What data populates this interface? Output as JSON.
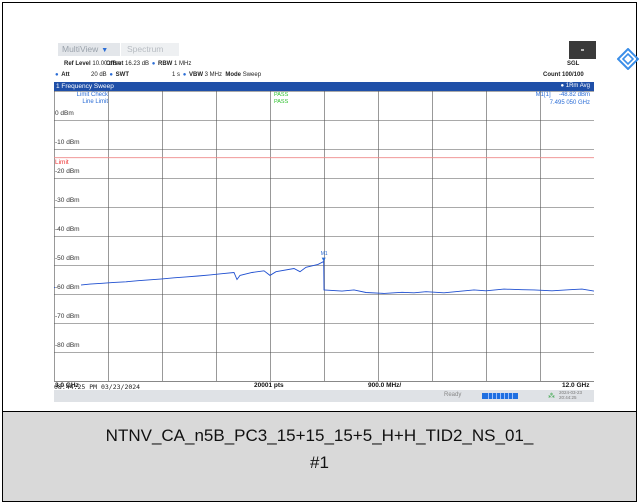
{
  "tabs": {
    "multiview": "MultiView",
    "spectrum": "Spectrum"
  },
  "header": {
    "ref_level_label": "Ref Level",
    "ref_level_value": "10.00 dBm",
    "offset_label": "Offset",
    "offset_value": "16.23 dB",
    "rbw_label": "RBW",
    "rbw_value": "1 MHz",
    "att_label": "Att",
    "att_value": "20 dB",
    "swt_label": "SWT",
    "swt_value": "1 s",
    "vbw_label": "VBW",
    "vbw_value": "3 MHz",
    "mode_label": "Mode",
    "mode_value": "Sweep",
    "sgl": "SGL",
    "count": "Count 100/100"
  },
  "window": {
    "title": "1 Frequency Sweep",
    "trace_label": "1Rm Avg",
    "limit_check": "Limit Check",
    "line_limit": "Line Limit",
    "pass1": "PASS",
    "pass2": "PASS",
    "marker_id": "M1[1]",
    "marker_level": "-48.82 dBm",
    "marker_freq": "7.495 050 GHz",
    "marker_tag": "M1",
    "limit_text": "Limit"
  },
  "footer": {
    "start": "3.0 GHz",
    "points": "20001 pts",
    "span_div": "900.0 MHz/",
    "stop": "12.0 GHz"
  },
  "status": {
    "ready": "Ready",
    "date": "2024-03-23",
    "time": "20:44:25"
  },
  "timestamp": "08:44:25 PM  03/23/2024",
  "caption": {
    "line1": "NTNV_CA_n5B_PC3_15+15_15+5_H+H_TID2_NS_01_",
    "line2": "#1"
  },
  "chart_data": {
    "type": "line",
    "y_ticks": [
      "0 dBm",
      "-10 dBm",
      "-20 dBm",
      "-30 dBm",
      "-40 dBm",
      "-50 dBm",
      "-60 dBm",
      "-70 dBm",
      "-80 dBm"
    ],
    "ylim": [
      -90,
      10
    ],
    "xlim_ghz": [
      3.0,
      12.0
    ],
    "limit_line_dbm": -13,
    "marker": {
      "x_ghz": 7.49505,
      "y_dbm": -48.82
    },
    "series": [
      {
        "values": [
          [
            3.0,
            -57.8
          ],
          [
            3.2,
            -57.3
          ],
          [
            3.4,
            -57.0
          ],
          [
            3.6,
            -56.6
          ],
          [
            3.8,
            -56.3
          ],
          [
            4.0,
            -56.0
          ],
          [
            4.2,
            -55.8
          ],
          [
            4.4,
            -55.4
          ],
          [
            4.6,
            -55.1
          ],
          [
            4.8,
            -54.8
          ],
          [
            5.0,
            -54.4
          ],
          [
            5.2,
            -54.1
          ],
          [
            5.4,
            -53.8
          ],
          [
            5.6,
            -53.4
          ],
          [
            5.8,
            -53.0
          ],
          [
            6.0,
            -52.6
          ],
          [
            6.05,
            -55.0
          ],
          [
            6.1,
            -53.6
          ],
          [
            6.3,
            -52.6
          ],
          [
            6.5,
            -52.0
          ],
          [
            6.6,
            -53.6
          ],
          [
            6.7,
            -52.3
          ],
          [
            7.0,
            -51.2
          ],
          [
            7.1,
            -52.3
          ],
          [
            7.2,
            -50.8
          ],
          [
            7.4,
            -49.8
          ],
          [
            7.495,
            -48.8
          ],
          [
            7.5,
            -58.6
          ],
          [
            7.8,
            -59.0
          ],
          [
            8.0,
            -58.6
          ],
          [
            8.2,
            -59.5
          ],
          [
            8.5,
            -59.8
          ],
          [
            8.8,
            -59.4
          ],
          [
            9.0,
            -59.6
          ],
          [
            9.2,
            -59.2
          ],
          [
            9.5,
            -59.6
          ],
          [
            9.8,
            -59.0
          ],
          [
            10.0,
            -58.6
          ],
          [
            10.2,
            -58.9
          ],
          [
            10.5,
            -58.3
          ],
          [
            10.8,
            -58.5
          ],
          [
            11.0,
            -58.6
          ],
          [
            11.3,
            -58.9
          ],
          [
            11.6,
            -58.5
          ],
          [
            11.8,
            -58.3
          ],
          [
            12.0,
            -59.0
          ]
        ]
      }
    ]
  }
}
